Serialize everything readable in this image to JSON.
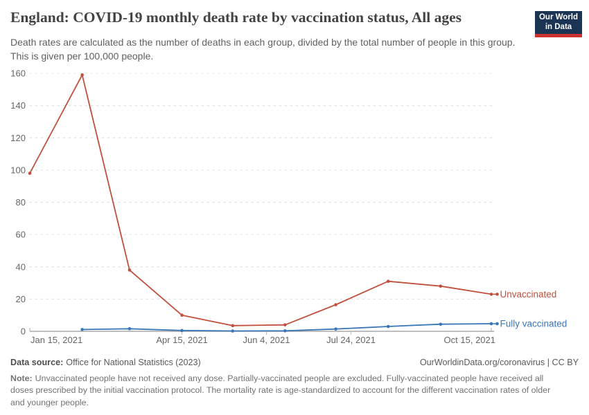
{
  "header": {
    "title": "England: COVID-19 monthly death rate by vaccination status, All ages",
    "subtitle": "Death rates are calculated as the number of deaths in each group, divided by the total number of people in this group. This is given per 100,000 people.",
    "logo": {
      "line1": "Our World",
      "line2": "in Data",
      "bg_color": "#1b3453",
      "bar_color": "#cb3230"
    }
  },
  "chart_data": {
    "type": "line",
    "title": "England: COVID-19 monthly death rate by vaccination status, All ages",
    "xlabel": "",
    "ylabel": "",
    "ylim": [
      0,
      160
    ],
    "yticks": [
      0,
      20,
      40,
      60,
      80,
      100,
      120,
      140,
      160
    ],
    "grid": true,
    "legend_position": "right-of-line",
    "x_max_day": 273,
    "xticks": [
      {
        "label": "Jan 15, 2021",
        "day": 0
      },
      {
        "label": "Apr 15, 2021",
        "day": 90
      },
      {
        "label": "Jun 4, 2021",
        "day": 140
      },
      {
        "label": "Jul 24, 2021",
        "day": 190
      },
      {
        "label": "Oct 15, 2021",
        "day": 273
      }
    ],
    "series": [
      {
        "name": "Unvaccinated",
        "color": "#c0503c",
        "points": [
          {
            "date": "Jan 15, 2021",
            "day": 0,
            "value": 98
          },
          {
            "date": "Feb 15, 2021",
            "day": 31,
            "value": 159
          },
          {
            "date": "Mar 15, 2021",
            "day": 59,
            "value": 38
          },
          {
            "date": "Apr 15, 2021",
            "day": 90,
            "value": 10
          },
          {
            "date": "May 15, 2021",
            "day": 120,
            "value": 3.5
          },
          {
            "date": "Jun 15, 2021",
            "day": 151,
            "value": 4
          },
          {
            "date": "Jul 15, 2021",
            "day": 181,
            "value": 16.5
          },
          {
            "date": "Aug 15, 2021",
            "day": 212,
            "value": 31
          },
          {
            "date": "Sep 15, 2021",
            "day": 243,
            "value": 28
          },
          {
            "date": "Oct 15, 2021",
            "day": 273,
            "value": 23
          }
        ]
      },
      {
        "name": "Fully vaccinated",
        "color": "#3a77b8",
        "points": [
          {
            "date": "Feb 15, 2021",
            "day": 31,
            "value": 1.1
          },
          {
            "date": "Mar 15, 2021",
            "day": 59,
            "value": 1.6
          },
          {
            "date": "Apr 15, 2021",
            "day": 90,
            "value": 0.5
          },
          {
            "date": "May 15, 2021",
            "day": 120,
            "value": 0.2
          },
          {
            "date": "Jun 15, 2021",
            "day": 151,
            "value": 0.3
          },
          {
            "date": "Jul 15, 2021",
            "day": 181,
            "value": 1.4
          },
          {
            "date": "Aug 15, 2021",
            "day": 212,
            "value": 3
          },
          {
            "date": "Sep 15, 2021",
            "day": 243,
            "value": 4.4
          },
          {
            "date": "Oct 15, 2021",
            "day": 273,
            "value": 4.7
          }
        ]
      }
    ]
  },
  "footer": {
    "data_source_label": "Data source:",
    "data_source": "Office for National Statistics (2023)",
    "link": "OurWorldinData.org/coronavirus",
    "separator": " | ",
    "license": "CC BY",
    "note_label": "Note:",
    "note": "Unvaccinated people have not received any dose. Partially-vaccinated people are excluded. Fully-vaccinated people have received all doses prescribed by the initial vaccination protocol. The mortality rate is age-standardized to account for the different vaccination rates of older and younger people."
  }
}
